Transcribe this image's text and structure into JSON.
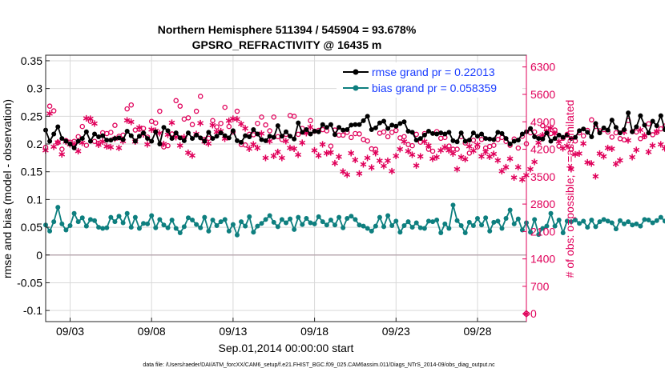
{
  "chart_data": {
    "type": "line",
    "title_line1": "Northern Hemisphere 511394 / 545904 = 93.678%",
    "title_line2": "GPSRO_REFRACTIVITY @ 16435 m",
    "xlabel": "Sep.01,2014 00:00:00 start",
    "ylabel_left": "rmse and bias (model - observation)",
    "ylabel_right": "# of obs: o=possible; ∗=assimilated",
    "footnote": "data file: /Users/raeder/DAI/ATM_forcXX/CAM6_setup/f.e21.FHIST_BGC.f09_025.CAM6assim.011/Diags_NTrS_2014-09/obs_diag_output.nc",
    "x_range": [
      1.5,
      31.0
    ],
    "x_ticks": [
      3,
      8,
      13,
      18,
      23,
      28
    ],
    "x_tick_labels": [
      "09/03",
      "09/08",
      "09/13",
      "09/18",
      "09/23",
      "09/28"
    ],
    "ylim_left": [
      -0.12,
      0.36
    ],
    "y_ticks_left": [
      -0.1,
      -0.05,
      0,
      0.05,
      0.1,
      0.15,
      0.2,
      0.25,
      0.3,
      0.35
    ],
    "y_tick_labels_left": [
      "-0.1",
      "-0.05",
      "0",
      "0.05",
      "0.1",
      "0.15",
      "0.2",
      "0.25",
      "0.3",
      "0.35"
    ],
    "ylim_right": [
      -200,
      6600
    ],
    "y_ticks_right": [
      0,
      700,
      1400,
      2100,
      2800,
      3500,
      4200,
      4900,
      5600,
      6300
    ],
    "y_tick_labels_right": [
      "0",
      "700",
      "1400",
      "2100",
      "2800",
      "3500",
      "4200",
      "4900",
      "5600",
      "6300"
    ],
    "legend": {
      "rmse_label": "rmse grand pr = 0.22013",
      "bias_label": "bias grand pr = 0.058359"
    },
    "colors": {
      "rmse": "#000000",
      "bias": "#0e7f7f",
      "obs": "#e0005a",
      "zero_line": "#b9a9b0",
      "grid": "#d9d9d9"
    },
    "x_start": 1.5,
    "x_step": 0.25,
    "rmse": [
      0.225,
      0.205,
      0.218,
      0.231,
      0.21,
      0.205,
      0.2,
      0.193,
      0.205,
      0.21,
      0.222,
      0.205,
      0.218,
      0.213,
      0.215,
      0.207,
      0.207,
      0.21,
      0.211,
      0.208,
      0.223,
      0.215,
      0.205,
      0.214,
      0.22,
      0.21,
      0.205,
      0.222,
      0.2,
      0.23,
      0.224,
      0.21,
      0.22,
      0.211,
      0.206,
      0.22,
      0.21,
      0.216,
      0.211,
      0.205,
      0.221,
      0.21,
      0.214,
      0.22,
      0.215,
      0.211,
      0.224,
      0.206,
      0.203,
      0.215,
      0.213,
      0.226,
      0.218,
      0.208,
      0.206,
      0.214,
      0.212,
      0.233,
      0.214,
      0.222,
      0.214,
      0.209,
      0.238,
      0.221,
      0.226,
      0.218,
      0.223,
      0.222,
      0.235,
      0.23,
      0.235,
      0.217,
      0.23,
      0.225,
      0.226,
      0.234,
      0.235,
      0.235,
      0.242,
      0.25,
      0.226,
      0.229,
      0.238,
      0.241,
      0.228,
      0.234,
      0.232,
      0.237,
      0.24,
      0.223,
      0.221,
      0.207,
      0.21,
      0.216,
      0.223,
      0.219,
      0.218,
      0.22,
      0.218,
      0.221,
      0.206,
      0.204,
      0.22,
      0.205,
      0.207,
      0.22,
      0.214,
      0.218,
      0.21,
      0.209,
      0.208,
      0.221,
      0.219,
      0.21,
      0.2,
      0.205,
      0.207,
      0.218,
      0.222,
      0.228,
      0.213,
      0.21,
      0.209,
      0.22,
      0.205,
      0.21,
      0.216,
      0.212,
      0.216,
      0.21,
      0.212,
      0.224,
      0.227,
      0.221,
      0.213,
      0.237,
      0.22,
      0.229,
      0.225,
      0.243,
      0.23,
      0.22,
      0.226,
      0.256,
      0.222,
      0.231,
      0.251,
      0.234,
      0.22,
      0.241,
      0.233,
      0.251,
      0.226,
      0.236,
      0.235,
      0.223,
      0.227,
      0.239,
      0.234,
      0.238,
      0.227,
      0.252,
      0.236,
      0.23,
      0.233,
      0.225,
      0.221,
      0.231,
      0.233,
      0.23,
      0.238,
      0.222,
      0.246,
      0.228,
      0.236,
      0.221,
      0.233,
      0.233,
      0.23,
      0.237,
      0.223,
      0.229,
      0.225,
      0.237,
      0.224,
      0.227,
      0.237,
      0.232,
      0.24,
      0.241
    ],
    "bias": [
      0.054,
      0.043,
      0.06,
      0.086,
      0.056,
      0.045,
      0.053,
      0.075,
      0.06,
      0.067,
      0.052,
      0.064,
      0.062,
      0.05,
      0.048,
      0.049,
      0.068,
      0.06,
      0.07,
      0.058,
      0.075,
      0.05,
      0.068,
      0.048,
      0.057,
      0.056,
      0.071,
      0.049,
      0.064,
      0.054,
      0.049,
      0.063,
      0.048,
      0.04,
      0.051,
      0.067,
      0.063,
      0.055,
      0.049,
      0.068,
      0.043,
      0.063,
      0.053,
      0.06,
      0.064,
      0.043,
      0.055,
      0.036,
      0.06,
      0.052,
      0.069,
      0.041,
      0.052,
      0.057,
      0.064,
      0.071,
      0.059,
      0.051,
      0.064,
      0.058,
      0.065,
      0.046,
      0.068,
      0.055,
      0.066,
      0.058,
      0.056,
      0.069,
      0.06,
      0.054,
      0.063,
      0.054,
      0.068,
      0.049,
      0.066,
      0.07,
      0.064,
      0.054,
      0.052,
      0.048,
      0.043,
      0.052,
      0.068,
      0.051,
      0.071,
      0.053,
      0.061,
      0.041,
      0.053,
      0.06,
      0.05,
      0.058,
      0.049,
      0.048,
      0.061,
      0.06,
      0.063,
      0.04,
      0.056,
      0.048,
      0.09,
      0.062,
      0.053,
      0.04,
      0.059,
      0.053,
      0.066,
      0.054,
      0.067,
      0.043,
      0.059,
      0.061,
      0.048,
      0.066,
      0.081,
      0.056,
      0.065,
      0.045,
      0.058,
      0.041,
      0.064,
      0.037,
      0.048,
      0.052,
      0.075,
      0.052,
      0.063,
      0.04,
      0.061,
      0.06,
      0.063,
      0.057,
      0.061,
      0.05,
      0.063,
      0.051,
      0.06,
      0.064,
      0.061,
      0.058,
      0.047,
      0.062,
      0.056,
      0.06,
      0.054,
      0.056,
      0.052,
      0.064,
      0.063,
      0.058,
      0.062,
      0.068,
      0.061,
      0.07,
      0.06,
      0.049,
      0.062,
      0.064,
      0.061,
      0.062,
      0.063,
      0.065,
      0.059,
      0.061,
      0.064,
      0.067,
      0.063,
      0.066,
      0.07,
      0.073,
      0.072,
      0.068,
      0.062,
      0.07,
      0.081,
      0.064,
      0.058,
      0.063,
      0.063,
      0.061,
      0.065,
      0.056,
      0.067,
      0.055,
      0.06,
      0.061,
      0.053,
      0.068,
      0.051,
      0.072,
      0.059,
      0.055,
      0.065,
      0.094,
      0.061,
      0.065
    ],
    "obs_possible": [
      4250,
      5300,
      5180,
      4370,
      4200,
      4420,
      4380,
      4400,
      4520,
      4780,
      4300,
      4910,
      4400,
      4350,
      4620,
      4600,
      4630,
      4810,
      4530,
      4560,
      5230,
      5330,
      4690,
      4710,
      4730,
      4510,
      4910,
      4870,
      5170,
      4260,
      4290,
      4590,
      5440,
      5300,
      4970,
      5000,
      4830,
      5170,
      5550,
      4450,
      4480,
      4930,
      4770,
      4860,
      5270,
      4780,
      4640,
      5170,
      4320,
      4310,
      4580,
      4570,
      4860,
      5020,
      4820,
      4670,
      5020,
      4520,
      4450,
      4580,
      5060,
      5040,
      4580,
      4730,
      4660,
      4930,
      4660,
      4680,
      4700,
      4670,
      4280,
      4690,
      4560,
      4560,
      4630,
      4500,
      4600,
      4590,
      4450,
      4410,
      4210,
      4200,
      4610,
      4640,
      4520,
      4630,
      4680,
      4490,
      4520,
      4320,
      4290,
      4580,
      4380,
      4600,
      4200,
      4150,
      4650,
      4480,
      4500,
      4280,
      4200,
      4200,
      4520,
      4360,
      4100,
      4430,
      4260,
      4450,
      4230,
      4270,
      4300,
      4450,
      4500,
      4400,
      4300,
      4460,
      4230,
      4530,
      4340,
      4620,
      4640,
      4510,
      4800,
      4720,
      4600,
      4690,
      4280,
      4480,
      4580,
      4200,
      4410,
      4620,
      4540,
      4680,
      4950,
      4780,
      4670,
      4700,
      4640,
      4510,
      4620,
      4470,
      4440,
      4930,
      4650,
      4640,
      4470,
      4520,
      4850,
      4570,
      4630,
      4720,
      4790,
      5040,
      4850,
      4830,
      4700,
      4580,
      4620,
      4870,
      4550,
      4720,
      4580,
      4620,
      4650,
      4840,
      4950,
      4730,
      4630,
      4910,
      5010,
      5000,
      4840,
      4980,
      4960,
      4780,
      4350,
      4340,
      4600,
      4430,
      4840,
      4640,
      4980,
      4630,
      4620,
      4600,
      4870,
      5240,
      4450,
      4080,
      4870,
      4570,
      4400,
      4770,
      4570,
      4170,
      4060,
      4380,
      4410,
      4310
    ],
    "obs_assimilated": [
      4190,
      5130,
      4280,
      4390,
      4090,
      4410,
      4340,
      4350,
      4170,
      4380,
      5010,
      5000,
      4870,
      4330,
      4410,
      4290,
      4270,
      4490,
      4250,
      4430,
      4960,
      4920,
      4410,
      4770,
      4600,
      4340,
      4720,
      4690,
      4630,
      4350,
      4590,
      4890,
      4530,
      4310,
      4530,
      4130,
      4060,
      4610,
      4880,
      4420,
      4360,
      4830,
      4660,
      4680,
      4490,
      4950,
      5000,
      4990,
      4860,
      4750,
      4230,
      4340,
      4250,
      4620,
      4000,
      4430,
      4050,
      4150,
      4000,
      4430,
      4250,
      4230,
      4080,
      4380,
      4630,
      4780,
      4190,
      4060,
      4340,
      4120,
      4140,
      3860,
      4030,
      3650,
      3570,
      4120,
      3950,
      3600,
      3830,
      4000,
      3750,
      4120,
      3930,
      3790,
      3920,
      3660,
      4050,
      4220,
      4410,
      4170,
      4080,
      3800,
      4040,
      4410,
      4310,
      3980,
      4020,
      4190,
      4270,
      4190,
      4110,
      3710,
      4020,
      3970,
      4290,
      4180,
      4330,
      4040,
      4150,
      4030,
      4100,
      3940,
      3660,
      3760,
      3980,
      3500,
      3760,
      3440,
      3560,
      3710,
      3890,
      4380,
      4580,
      4660,
      4760,
      4620,
      4420,
      4240,
      4300,
      3710,
      4090,
      4110,
      4360,
      3880,
      3850,
      3530,
      4110,
      4040,
      4250,
      4230,
      3840,
      3940,
      4660,
      4450,
      4020,
      4200,
      4710,
      4570,
      4150,
      4310,
      4670,
      4340,
      4240,
      4420,
      4450,
      4150,
      4470,
      4300,
      4180,
      4240,
      4030,
      3950,
      4370,
      4090,
      4460,
      4170,
      4040,
      4270,
      4260,
      4320,
      4390,
      4250,
      4400,
      4300,
      4460,
      4030,
      4370,
      4510,
      4160,
      4270,
      3990,
      3930,
      4030,
      3980,
      3830,
      3650,
      4280,
      4080,
      4200,
      4430,
      3710,
      3750,
      4060,
      4200,
      3900,
      4310
    ]
  }
}
